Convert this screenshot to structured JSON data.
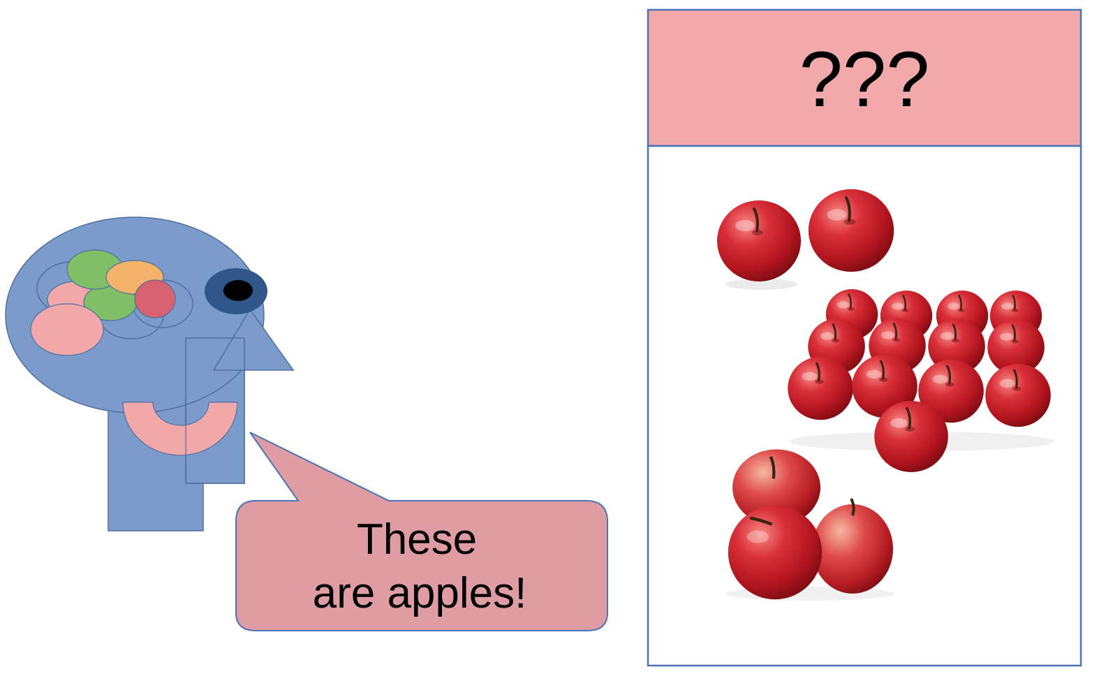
{
  "speech_bubble": {
    "line1": "These",
    "line2": "are apples!"
  },
  "panel": {
    "header_label": "???"
  },
  "colors": {
    "head": "#7b9ccb",
    "head_stroke": "#4f6f9e",
    "brain_green": "#7fbf66",
    "brain_orange": "#f3b46a",
    "brain_pink": "#f2a7a8",
    "brain_red": "#d7616f",
    "eye_ring": "#31578a",
    "speech_fill": "#e09ca3",
    "speech_stroke": "#4a74b8",
    "header_fill": "#f2a9a9",
    "panel_stroke": "#4a74b8",
    "apple_red": "#c8202a"
  },
  "icons": {
    "person": "person-head-icon",
    "apple": "apple-icon"
  }
}
